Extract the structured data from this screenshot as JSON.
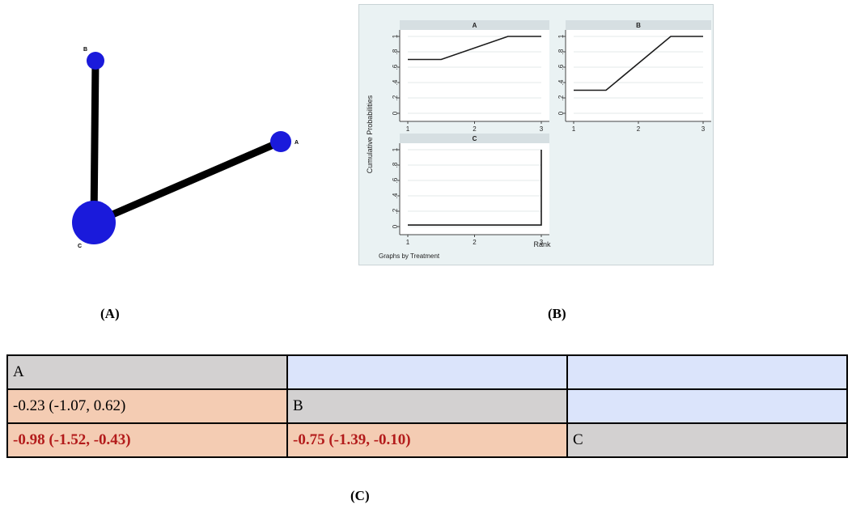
{
  "network": {
    "nodes": [
      {
        "id": "B",
        "label": "B",
        "size": "small"
      },
      {
        "id": "A",
        "label": "A",
        "size": "small"
      },
      {
        "id": "C",
        "label": "C",
        "size": "large"
      }
    ],
    "edges": [
      [
        "B",
        "C"
      ],
      [
        "A",
        "C"
      ]
    ],
    "node_color": "#1a1adb",
    "edge_color": "#000000"
  },
  "captions": {
    "a": "(A)",
    "b": "(B)",
    "c": "(C)"
  },
  "chart_data": {
    "type": "line",
    "ylabel": "Cumulative Probabilities",
    "xlabel": "Rank",
    "note": "Graphs by Treatment",
    "x_ticks": [
      "1",
      "2",
      "3"
    ],
    "y_ticks": [
      "0",
      ".2",
      ".4",
      ".6",
      ".8",
      "1"
    ],
    "ylim": [
      0,
      1
    ],
    "xlim": [
      1,
      3
    ],
    "panels": [
      {
        "title": "A",
        "x": [
          1,
          1.5,
          2.5,
          3
        ],
        "y": [
          0.7,
          0.7,
          1.0,
          1.0
        ]
      },
      {
        "title": "B",
        "x": [
          1,
          1.5,
          2.5,
          3
        ],
        "y": [
          0.3,
          0.3,
          1.0,
          1.0
        ]
      },
      {
        "title": "C",
        "x": [
          1,
          2.99,
          3,
          3
        ],
        "y": [
          0.02,
          0.02,
          0.02,
          1.0
        ]
      }
    ]
  },
  "league_table": {
    "rows": [
      [
        {
          "text": "A",
          "kind": "diag"
        },
        {
          "text": "",
          "kind": "empty"
        },
        {
          "text": "",
          "kind": "empty"
        }
      ],
      [
        {
          "text": "-0.23 (-1.07, 0.62)",
          "kind": "val"
        },
        {
          "text": "B",
          "kind": "diag"
        },
        {
          "text": "",
          "kind": "empty"
        }
      ],
      [
        {
          "text": "-0.98 (-1.52, -0.43)",
          "kind": "sig"
        },
        {
          "text": "-0.75 (-1.39, -0.10)",
          "kind": "sig"
        },
        {
          "text": "C",
          "kind": "diag"
        }
      ]
    ]
  }
}
